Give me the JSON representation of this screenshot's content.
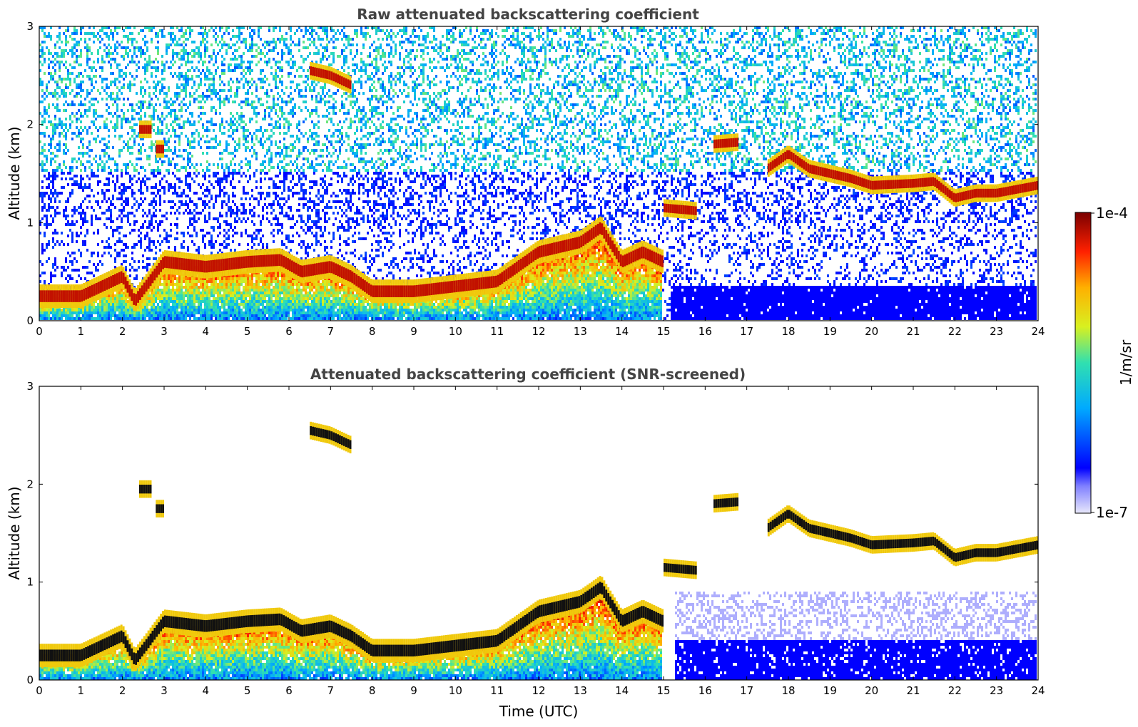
{
  "chart_data": [
    {
      "type": "heatmap",
      "title": "Raw attenuated backscattering coefficient",
      "xlabel": "",
      "ylabel": "Altitude (km)",
      "xlim": [
        0,
        24
      ],
      "ylim": [
        0,
        3
      ],
      "xticks": [
        "0",
        "1",
        "2",
        "3",
        "4",
        "5",
        "6",
        "7",
        "8",
        "9",
        "10",
        "11",
        "12",
        "13",
        "14",
        "15",
        "16",
        "17",
        "18",
        "19",
        "20",
        "21",
        "22",
        "23",
        "24"
      ],
      "yticks": [
        "0",
        "1",
        "2",
        "3"
      ],
      "colormap": "jet",
      "color_scale": "log",
      "screened": false,
      "layers": [
        {
          "name": "boundary-layer",
          "x": [
            0,
            1,
            2,
            2.3,
            3,
            4,
            5,
            5.8,
            6.3,
            7,
            7.5,
            8,
            9,
            10,
            11,
            11.5,
            12,
            13,
            13.5,
            14,
            14.5,
            15
          ],
          "y": [
            0.25,
            0.25,
            0.45,
            0.2,
            0.6,
            0.55,
            0.6,
            0.62,
            0.5,
            0.55,
            0.45,
            0.3,
            0.3,
            0.35,
            0.4,
            0.55,
            0.7,
            0.8,
            0.95,
            0.6,
            0.7,
            0.6
          ]
        },
        {
          "name": "cloud-layer-upper",
          "x": [
            17.5,
            18,
            18.5,
            19,
            19.5,
            20,
            21,
            21.5,
            22,
            22.5,
            23,
            24
          ],
          "y": [
            1.55,
            1.7,
            1.55,
            1.5,
            1.45,
            1.38,
            1.4,
            1.42,
            1.25,
            1.3,
            1.3,
            1.38
          ]
        },
        {
          "name": "cloud-segment-a",
          "x": [
            15,
            15.8
          ],
          "y": [
            1.15,
            1.12
          ]
        },
        {
          "name": "cloud-segment-b",
          "x": [
            16.2,
            16.8
          ],
          "y": [
            1.8,
            1.82
          ]
        },
        {
          "name": "cloud-segment-c",
          "x": [
            2.4,
            2.7
          ],
          "y": [
            1.95,
            1.95
          ]
        },
        {
          "name": "cloud-segment-d",
          "x": [
            2.8,
            3.0
          ],
          "y": [
            1.75,
            1.75
          ]
        },
        {
          "name": "aerosol-plume",
          "x": [
            6.5,
            7.0,
            7.5
          ],
          "y": [
            2.55,
            2.5,
            2.4
          ]
        }
      ]
    },
    {
      "type": "heatmap",
      "title": "Attenuated backscattering coefficient (SNR-screened)",
      "xlabel": "Time (UTC)",
      "ylabel": "Altitude (km)",
      "xlim": [
        0,
        24
      ],
      "ylim": [
        0,
        3
      ],
      "xticks": [
        "0",
        "1",
        "2",
        "3",
        "4",
        "5",
        "6",
        "7",
        "8",
        "9",
        "10",
        "11",
        "12",
        "13",
        "14",
        "15",
        "16",
        "17",
        "18",
        "19",
        "20",
        "21",
        "22",
        "23",
        "24"
      ],
      "yticks": [
        "0",
        "1",
        "2",
        "3"
      ],
      "colormap": "jet",
      "color_scale": "log",
      "screened": true
    }
  ],
  "colorbar": {
    "label": "1/m/sr",
    "max_label": "1e-4",
    "min_label": "1e-7",
    "range": [
      1e-07,
      0.0001
    ]
  }
}
